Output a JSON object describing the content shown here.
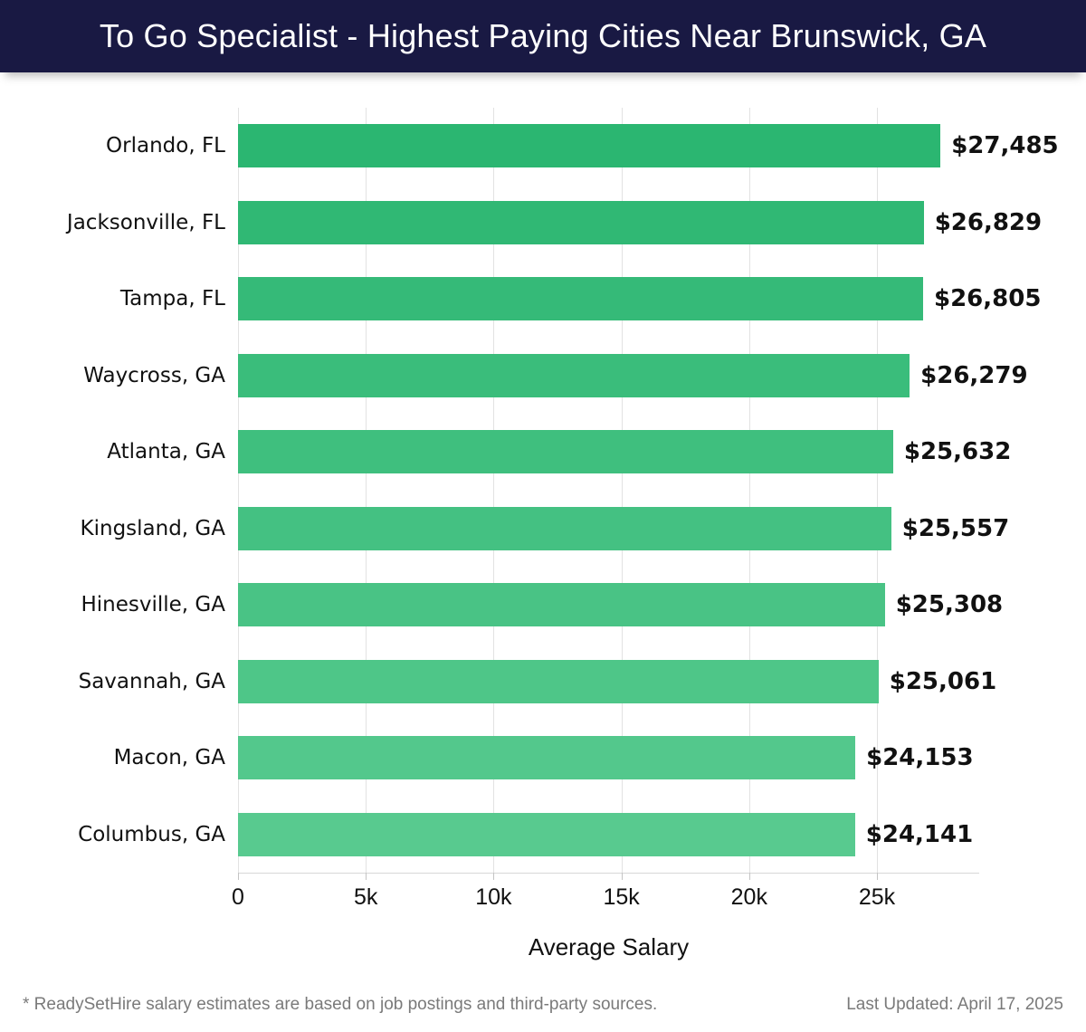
{
  "header": {
    "title": "To Go Specialist - Highest Paying Cities Near Brunswick, GA"
  },
  "chart_data": {
    "type": "bar",
    "orientation": "horizontal",
    "title": "To Go Specialist - Highest Paying Cities Near Brunswick, GA",
    "categories": [
      "Orlando, FL",
      "Jacksonville, FL",
      "Tampa, FL",
      "Waycross, GA",
      "Atlanta, GA",
      "Kingsland, GA",
      "Hinesville, GA",
      "Savannah, GA",
      "Macon, GA",
      "Columbus, GA"
    ],
    "values": [
      27485,
      26829,
      26805,
      26279,
      25632,
      25557,
      25308,
      25061,
      24153,
      24141
    ],
    "value_labels": [
      "$27,485",
      "$26,829",
      "$26,805",
      "$26,279",
      "$25,632",
      "$25,557",
      "$25,308",
      "$25,061",
      "$24,153",
      "$24,141"
    ],
    "bar_colors": [
      "#2bb671",
      "#30b874",
      "#35ba78",
      "#3abd7b",
      "#3fbf7e",
      "#44c182",
      "#49c385",
      "#4ec688",
      "#53c88c",
      "#58ca8f"
    ],
    "xlabel": "Average Salary",
    "ylabel": "",
    "xlim": [
      0,
      29000
    ],
    "xticks": [
      0,
      5000,
      10000,
      15000,
      20000,
      25000
    ],
    "xtick_labels": [
      "0",
      "5k",
      "10k",
      "15k",
      "20k",
      "25k"
    ],
    "grid": "vertical"
  },
  "colors": {
    "header_bg": "#191943",
    "header_text": "#ffffff",
    "grid_line": "#e2e2e2",
    "axis_line": "#d8d8d8",
    "tick_mark": "#c4c4c4",
    "label_text": "#111111",
    "footer_text": "#7a7a7a"
  },
  "footer": {
    "note": "* ReadySetHire salary estimates are based on job postings and third-party sources.",
    "last_updated": "Last Updated: April 17, 2025"
  }
}
